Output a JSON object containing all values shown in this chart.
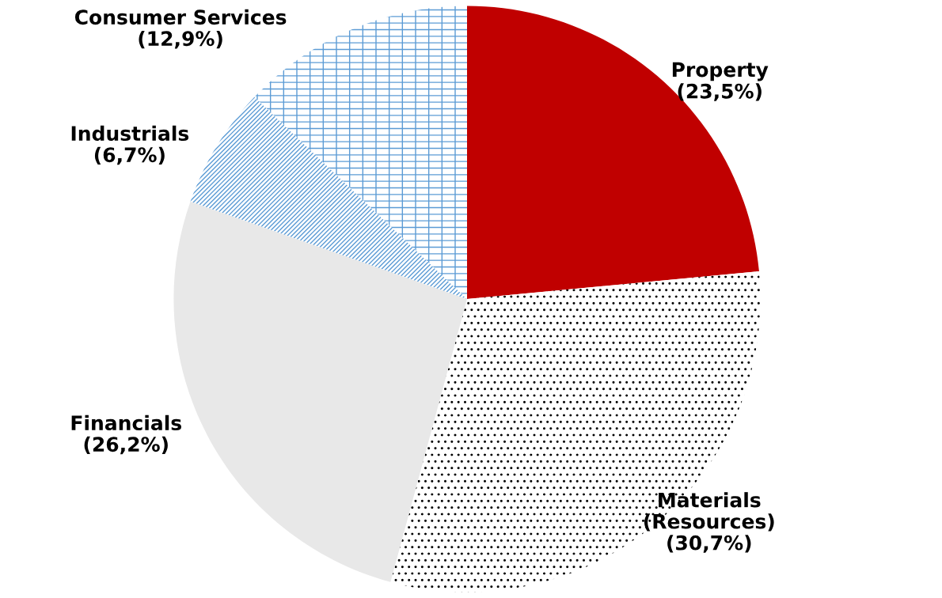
{
  "chart_data": {
    "type": "pie",
    "categories": [
      "Property",
      "Materials\n(Resources)",
      "Financials",
      "Industrials",
      "Consumer Services"
    ],
    "values": [
      23.5,
      30.7,
      26.2,
      6.7,
      12.9
    ],
    "value_labels": [
      "(23,5%)",
      "(30,7%)",
      "(26,2%)",
      "(6,7%)",
      "(12,9%)"
    ],
    "colors": [
      "#c00000",
      "#000000",
      "#e8e8e8",
      "#5b9bd5",
      "#5b9bd5"
    ],
    "legend": false
  }
}
